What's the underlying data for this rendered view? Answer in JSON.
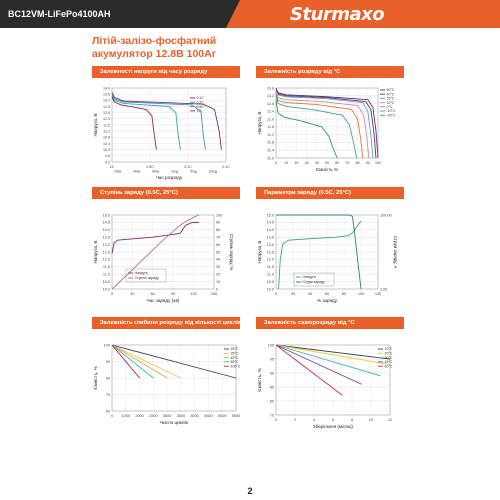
{
  "header": {
    "model": "BC12VM-LiFePo4100AH",
    "brand": "Sturmaxo"
  },
  "title": {
    "line1": "Літій-залізо-фосфатний",
    "line2": "акумулятор 12.8В 100Аг"
  },
  "colors": {
    "accent": "#e8612a",
    "dark": "#2b2b2b"
  },
  "panels": {
    "p1": "Залежності напруги від часу розряду",
    "p2": "Залежність розряду від °C",
    "p3": "Ступінь заряду (0.5C, 25°C)",
    "p4": "Параметри заряду (0.5C, 25°C)",
    "p5": "Залежність глибини розряду від кількості циклів",
    "p6": "Залежність саморозряду від °C"
  },
  "page_number": "2",
  "chart_data": [
    {
      "type": "line",
      "id": "p1",
      "xlabel": "Час розряду",
      "ylabel": "Напруга, В",
      "y_ticks": [
        "14.0",
        "13.6",
        "13.2",
        "12.8",
        "12.4",
        "12.0",
        "11.6",
        "11.2",
        "10.8",
        "10.4",
        "10.0",
        "9.6",
        "9.2"
      ],
      "x_ticks": [
        "1C",
        "0.5C",
        "0.2C",
        "0.1C"
      ],
      "x_sub_ticks": [
        "20хв",
        "40хв",
        "60хв",
        "2год",
        "5год",
        "10год"
      ],
      "ylim": [
        9.2,
        14.0
      ],
      "series": [
        {
          "name": "0.1C",
          "color": "#7a2a6b",
          "x": [
            0,
            0.02,
            0.1,
            0.5,
            0.8,
            0.9,
            0.94,
            0.96
          ],
          "y": [
            13.7,
            13.4,
            13.15,
            13.05,
            12.95,
            12.6,
            11.2,
            10.0
          ]
        },
        {
          "name": "0.2C",
          "color": "#3a8fd0",
          "x": [
            0,
            0.02,
            0.1,
            0.4,
            0.7,
            0.78,
            0.8,
            0.82
          ],
          "y": [
            13.6,
            13.3,
            13.1,
            13.0,
            12.9,
            12.5,
            11.0,
            10.0
          ]
        },
        {
          "name": "0.5C",
          "color": "#2aa8a0",
          "x": [
            0,
            0.02,
            0.1,
            0.3,
            0.5,
            0.56,
            0.58,
            0.6
          ],
          "y": [
            13.5,
            13.2,
            13.0,
            12.9,
            12.8,
            12.4,
            11.0,
            10.0
          ]
        },
        {
          "name": "1C",
          "color": "#8c2a4a",
          "x": [
            0,
            0.02,
            0.08,
            0.2,
            0.3,
            0.35,
            0.37,
            0.39
          ],
          "y": [
            13.4,
            13.1,
            12.9,
            12.75,
            12.6,
            12.2,
            11.0,
            10.0
          ]
        }
      ]
    },
    {
      "type": "line",
      "id": "p2",
      "xlabel": "Ємність %",
      "ylabel": "Напруга, В",
      "y_ticks": [
        "13.6",
        "13.2",
        "12.8",
        "12.4",
        "12.0",
        "11.6",
        "11.2",
        "10.8",
        "10.4",
        "10.0"
      ],
      "x_ticks": [
        "0",
        "10",
        "20",
        "30",
        "40",
        "50",
        "60",
        "70",
        "80",
        "90",
        "100"
      ],
      "ylim": [
        10.0,
        13.6
      ],
      "xlim": [
        0,
        100
      ],
      "series": [
        {
          "name": "50°C",
          "color": "#3b3b8a",
          "x": [
            0,
            2,
            10,
            50,
            90,
            95,
            98,
            100
          ],
          "y": [
            13.6,
            13.35,
            13.25,
            13.15,
            13.0,
            12.6,
            11.4,
            10.0
          ]
        },
        {
          "name": "40°C",
          "color": "#8c2a4a",
          "x": [
            0,
            2,
            10,
            50,
            88,
            93,
            96,
            98
          ],
          "y": [
            13.5,
            13.3,
            13.2,
            13.1,
            12.9,
            12.5,
            11.3,
            10.0
          ]
        },
        {
          "name": "25°C",
          "color": "#5ba0d8",
          "x": [
            0,
            2,
            10,
            50,
            85,
            90,
            93,
            95
          ],
          "y": [
            13.45,
            13.25,
            13.15,
            13.05,
            12.85,
            12.4,
            11.2,
            10.0
          ]
        },
        {
          "name": "10°C",
          "color": "#d08aa0",
          "x": [
            0,
            2,
            10,
            45,
            80,
            86,
            89,
            91
          ],
          "y": [
            13.4,
            13.1,
            13.0,
            12.9,
            12.7,
            12.2,
            11.1,
            10.0
          ]
        },
        {
          "name": "0°C",
          "color": "#e0782a",
          "x": [
            0,
            2,
            10,
            40,
            74,
            80,
            83,
            85
          ],
          "y": [
            13.3,
            12.95,
            12.85,
            12.75,
            12.5,
            12.0,
            11.0,
            10.0
          ]
        },
        {
          "name": "-10°C",
          "color": "#4a9aa8",
          "x": [
            0,
            2,
            10,
            35,
            65,
            72,
            76,
            79
          ],
          "y": [
            13.2,
            12.8,
            12.65,
            12.5,
            12.2,
            11.7,
            10.8,
            10.0
          ]
        },
        {
          "name": "-20°C",
          "color": "#2f9a5a",
          "x": [
            0,
            2,
            8,
            25,
            45,
            52,
            56,
            60
          ],
          "y": [
            13.0,
            12.3,
            12.1,
            11.9,
            11.6,
            11.1,
            10.5,
            10.0
          ]
        }
      ]
    },
    {
      "type": "line",
      "id": "p3",
      "xlabel": "Час заряду (хв)",
      "ylabel": "Напруга, В",
      "y2label": "Ступінь заряду, %",
      "y_ticks": [
        "15.0",
        "14.5",
        "14.0",
        "13.5",
        "13.0",
        "12.5",
        "12.0",
        "11.5",
        "11.0",
        "10.5",
        "10.0"
      ],
      "y2_ticks": [
        "100",
        "90",
        "80",
        "70",
        "60",
        "50",
        "40",
        "30",
        "20",
        "10",
        "0"
      ],
      "x_ticks": [
        "0",
        "30",
        "60",
        "90",
        "120",
        "150"
      ],
      "ylim": [
        10.0,
        15.0
      ],
      "xlim": [
        0,
        150
      ],
      "series": [
        {
          "name": "Напруга",
          "color": "#7a2a6b",
          "x": [
            0,
            3,
            8,
            20,
            60,
            100,
            108,
            118,
            128
          ],
          "y": [
            12.4,
            13.1,
            13.3,
            13.35,
            13.5,
            13.75,
            14.3,
            14.5,
            14.5
          ]
        },
        {
          "name": "Ступінь заряду",
          "color": "#b06aa0",
          "axis": "y2",
          "x": [
            0,
            20,
            40,
            60,
            80,
            100,
            110,
            120,
            128
          ],
          "y": [
            0,
            17,
            35,
            53,
            70,
            86,
            92,
            97,
            100
          ]
        }
      ]
    },
    {
      "type": "line",
      "id": "p4",
      "xlabel": "% заряду",
      "ylabel": "Напруга, В",
      "y2label": "Струм заряду, А",
      "y_ticks": [
        "15.0",
        "14.5",
        "14.0",
        "13.5",
        "13.0",
        "12.5",
        "12.0",
        "11.5",
        "11.0",
        "10.5",
        "10.0"
      ],
      "y2_ticks": [
        "100.00",
        "1.00"
      ],
      "x_ticks": [
        "0",
        "20",
        "40",
        "60",
        "80",
        "100",
        "120"
      ],
      "ylim": [
        10.0,
        15.0
      ],
      "xlim": [
        0,
        120
      ],
      "series": [
        {
          "name": "Напруга",
          "color": "#3aa870",
          "x": [
            3,
            5,
            8,
            15,
            40,
            70,
            85,
            90,
            96,
            100
          ],
          "y": [
            10.0,
            12.0,
            13.05,
            13.3,
            13.4,
            13.5,
            13.6,
            13.8,
            14.3,
            14.6
          ]
        },
        {
          "name": "Струм заряду",
          "color": "#2c7a8a",
          "axis": "y2",
          "x": [
            0,
            85,
            88,
            90,
            92,
            95,
            100
          ],
          "y": [
            100,
            100,
            98,
            90,
            40,
            10,
            1
          ]
        }
      ]
    },
    {
      "type": "line",
      "id": "p5",
      "xlabel": "Число циклів",
      "ylabel": "Ємність, %",
      "y_ticks": [
        "100",
        "90",
        "80",
        "70",
        "60"
      ],
      "x_ticks": [
        "0",
        "1000",
        "2000",
        "2500",
        "3000",
        "3500",
        "4000",
        "4500",
        "5000",
        "5500"
      ],
      "ylim": [
        60,
        100
      ],
      "series": [
        {
          "name": "25°C",
          "color": "#4a3a7a",
          "x": [
            0,
            5500
          ],
          "y": [
            100,
            80
          ]
        },
        {
          "name": "35°C",
          "color": "#e0c860",
          "x": [
            0,
            3500
          ],
          "y": [
            100,
            80
          ]
        },
        {
          "name": "45°C",
          "color": "#e8a840",
          "x": [
            0,
            3000
          ],
          "y": [
            100,
            80
          ]
        },
        {
          "name": "55°C",
          "color": "#3ab0b8",
          "x": [
            0,
            2500
          ],
          "y": [
            100,
            80
          ]
        },
        {
          "name": "100°C",
          "color": "#b02040",
          "x": [
            0,
            2000
          ],
          "y": [
            100,
            80
          ]
        }
      ]
    },
    {
      "type": "line",
      "id": "p6",
      "xlabel": "Зберігання (місяці)",
      "ylabel": "Ємність, %",
      "y_ticks": [
        "100",
        "95",
        "90",
        "85",
        "80",
        "75"
      ],
      "x_ticks": [
        "0",
        "2",
        "4",
        "6",
        "8",
        "10",
        "12"
      ],
      "ylim": [
        75,
        100
      ],
      "xlim": [
        0,
        12
      ],
      "series": [
        {
          "name": "10°C",
          "color": "#3a3a4a",
          "x": [
            0,
            12
          ],
          "y": [
            100,
            95
          ]
        },
        {
          "name": "20°C",
          "color": "#e8c830",
          "x": [
            0,
            12
          ],
          "y": [
            100,
            93
          ]
        },
        {
          "name": "30°C",
          "color": "#3ab0c8",
          "x": [
            0,
            11
          ],
          "y": [
            100,
            89
          ]
        },
        {
          "name": "45°C",
          "color": "#7a4a9a",
          "x": [
            0,
            9
          ],
          "y": [
            100,
            86
          ]
        },
        {
          "name": "60°C",
          "color": "#c03050",
          "x": [
            0,
            7
          ],
          "y": [
            100,
            82
          ]
        }
      ]
    }
  ]
}
